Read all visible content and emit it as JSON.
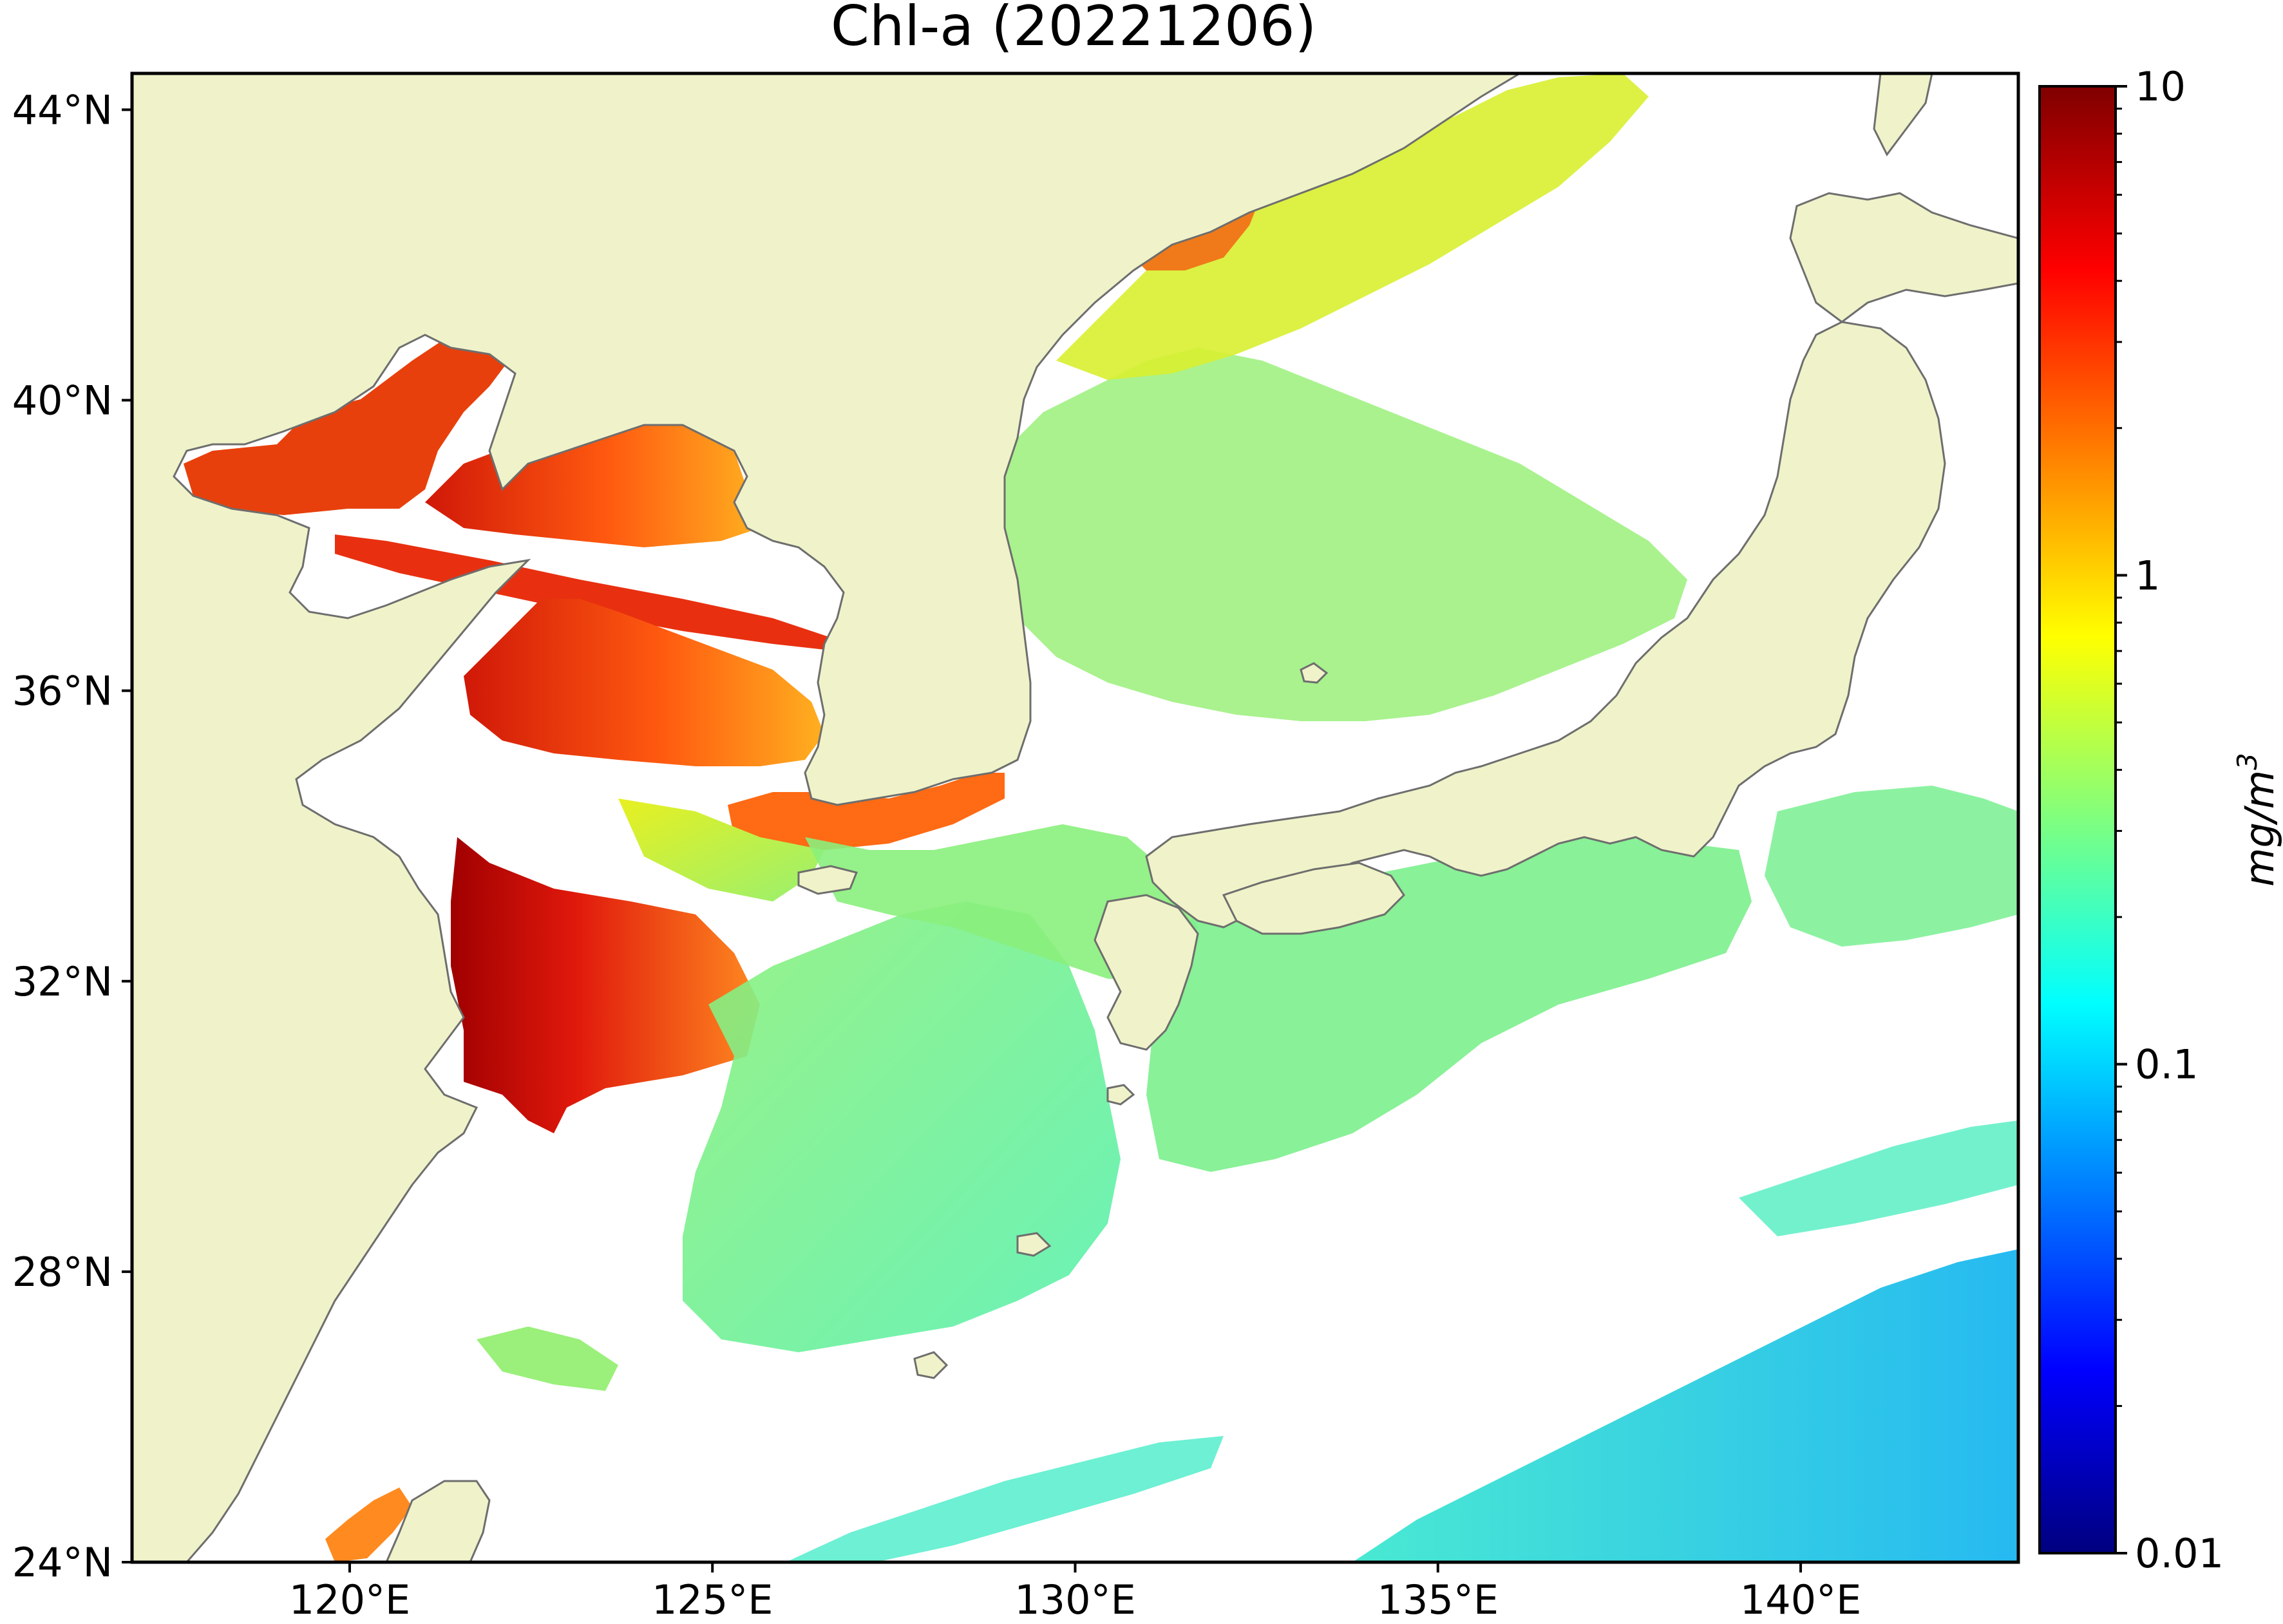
{
  "map": {
    "title": "Chl-a (20221206)",
    "region": {
      "lon_min": 117,
      "lon_max": 143,
      "lat_min": 24,
      "lat_max": 44.5
    },
    "lon_ticks": [
      {
        "value": 120,
        "label": "120°E"
      },
      {
        "value": 125,
        "label": "125°E"
      },
      {
        "value": 130,
        "label": "130°E"
      },
      {
        "value": 135,
        "label": "135°E"
      },
      {
        "value": 140,
        "label": "140°E"
      }
    ],
    "lat_ticks": [
      {
        "value": 24,
        "label": "24°N"
      },
      {
        "value": 28,
        "label": "28°N"
      },
      {
        "value": 32,
        "label": "32°N"
      },
      {
        "value": 36,
        "label": "36°N"
      },
      {
        "value": 40,
        "label": "40°N"
      },
      {
        "value": 44,
        "label": "44°N"
      }
    ],
    "colors": {
      "land": "#f0f3c9",
      "no_data": "#ffffff",
      "coastline": "#6e6e6e"
    }
  },
  "colorbar": {
    "label": "mg/m",
    "label_superscript": "3",
    "scale": "log",
    "min": 0.01,
    "max": 10,
    "ticks": [
      {
        "value": 10,
        "label": "10"
      },
      {
        "value": 1,
        "label": "1"
      },
      {
        "value": 0.1,
        "label": "0.1"
      },
      {
        "value": 0.01,
        "label": "0.01"
      }
    ],
    "colormap": "jet",
    "colormap_stops": [
      "#00007f",
      "#0000ff",
      "#007fff",
      "#00ffff",
      "#7fff7f",
      "#ffff00",
      "#ff7f00",
      "#ff0000",
      "#7f0000"
    ]
  }
}
